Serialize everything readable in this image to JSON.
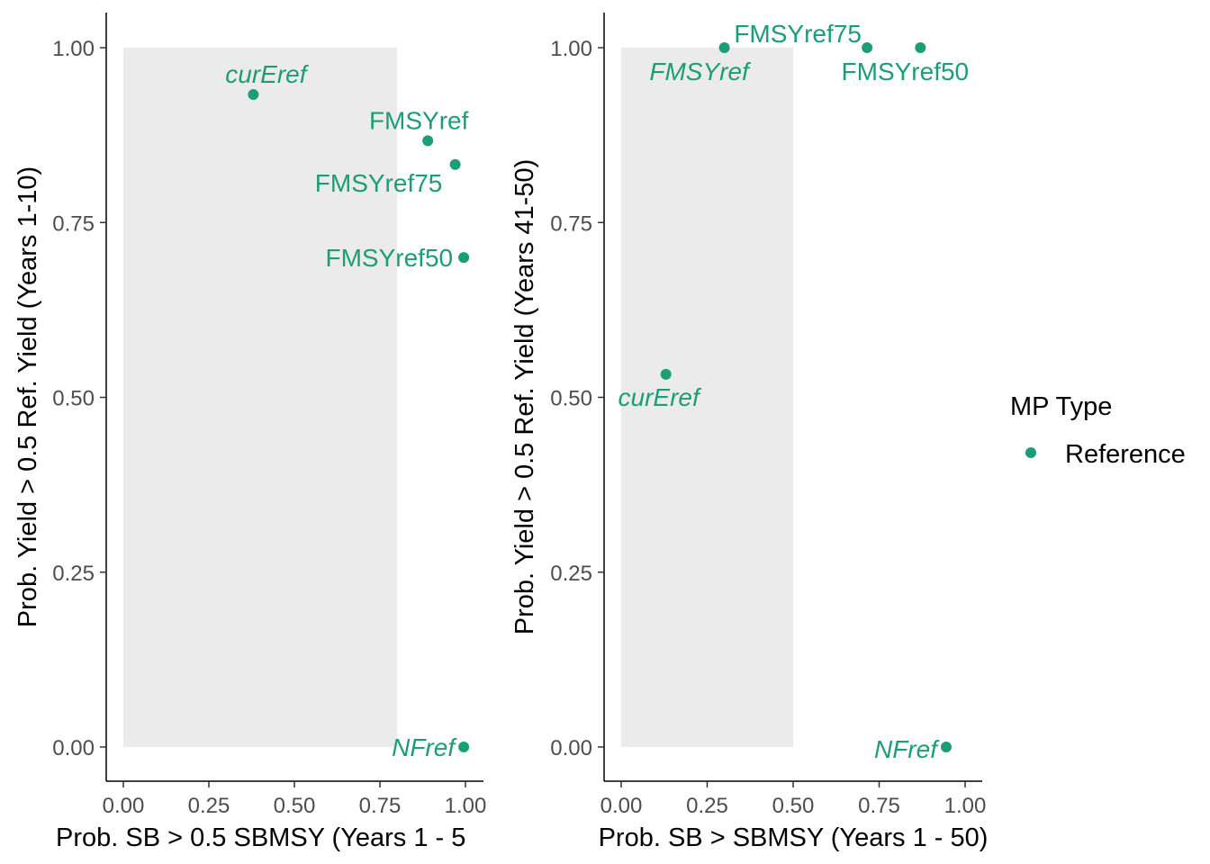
{
  "colors": {
    "reference": "#1b9e77",
    "shade": "#ebebeb",
    "axis": "#000000",
    "tick_text": "#4d4d4d"
  },
  "legend": {
    "title": "MP Type",
    "items": [
      {
        "label": "Reference"
      }
    ]
  },
  "chart_data": [
    {
      "type": "scatter",
      "xlabel": "Prob. SB > 0.5 SBMSY (Years 1 - 5",
      "ylabel": "Prob. Yield > 0.5 Ref. Yield (Years 1-10)",
      "xlim": [
        0,
        1
      ],
      "ylim": [
        0,
        1
      ],
      "xticks": [
        "0.00",
        "0.25",
        "0.50",
        "0.75",
        "1.00"
      ],
      "yticks": [
        "0.00",
        "0.25",
        "0.50",
        "0.75",
        "1.00"
      ],
      "shaded_region": {
        "x": [
          0,
          0.8
        ],
        "y": [
          0,
          1
        ]
      },
      "points": [
        {
          "name": "curEref",
          "x": 0.38,
          "y": 0.933,
          "italic": true
        },
        {
          "name": "FMSYref",
          "x": 0.89,
          "y": 0.867,
          "italic": false
        },
        {
          "name": "FMSYref75",
          "x": 0.97,
          "y": 0.833,
          "italic": false
        },
        {
          "name": "FMSYref50",
          "x": 0.995,
          "y": 0.7,
          "italic": false
        },
        {
          "name": "NFref",
          "x": 0.995,
          "y": 0.0,
          "italic": true
        }
      ]
    },
    {
      "type": "scatter",
      "xlabel": "Prob. SB > SBMSY (Years 1 - 50)",
      "ylabel": "Prob. Yield > 0.5 Ref. Yield (Years 41-50)",
      "xlim": [
        0,
        1
      ],
      "ylim": [
        0,
        1
      ],
      "xticks": [
        "0.00",
        "0.25",
        "0.50",
        "0.75",
        "1.00"
      ],
      "yticks": [
        "0.00",
        "0.25",
        "0.50",
        "0.75",
        "1.00"
      ],
      "shaded_region": {
        "x": [
          0,
          0.5
        ],
        "y": [
          0,
          1
        ]
      },
      "points": [
        {
          "name": "FMSYref",
          "x": 0.3,
          "y": 1.0,
          "italic": true
        },
        {
          "name": "FMSYref75",
          "x": 0.715,
          "y": 1.0,
          "italic": false
        },
        {
          "name": "FMSYref50",
          "x": 0.87,
          "y": 1.0,
          "italic": false
        },
        {
          "name": "curEref",
          "x": 0.13,
          "y": 0.533,
          "italic": true
        },
        {
          "name": "NFref",
          "x": 0.945,
          "y": 0.0,
          "italic": true
        }
      ]
    }
  ]
}
